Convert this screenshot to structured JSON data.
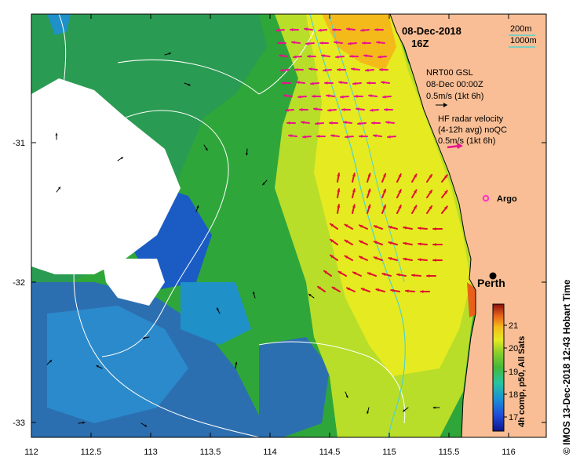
{
  "header": {
    "date": "08-Dec-2018",
    "hour": "16Z"
  },
  "isobath_legend": {
    "contour_200": "200m",
    "contour_1000": "1000m"
  },
  "model_legend": {
    "line1": "NRT00 GSL",
    "line2": "08-Dec 00:00Z",
    "line3": "0.5m/s (1kt 6h)"
  },
  "radar_legend": {
    "line1": "HF radar velocity",
    "line2": "(4-12h avg) noQC",
    "line3": "0.5m/s (1kt 6h)"
  },
  "places": {
    "argo": "Argo",
    "perth": "Perth"
  },
  "axes": {
    "x_ticks": [
      "112",
      "112.5",
      "113",
      "113.5",
      "114",
      "114.5",
      "115",
      "115.5",
      "116"
    ],
    "y_ticks": [
      "-31",
      "-32",
      "-33"
    ]
  },
  "colorbar": {
    "label": "4h comp, p50, All Sats",
    "ticks": [
      "17",
      "18",
      "19",
      "20",
      "21"
    ]
  },
  "credit": "© IMOS 13-Dec-2018 12:43 Hobart Time",
  "colors": {
    "land": "#f9be95",
    "radar_arrow": "#e8128a",
    "radar_arrow_south": "#e01030",
    "model_arrow": "#000000",
    "isobath_200": "#4fd3cf",
    "isobath_1000": "#ffffff",
    "argo": "#ff33cc"
  }
}
